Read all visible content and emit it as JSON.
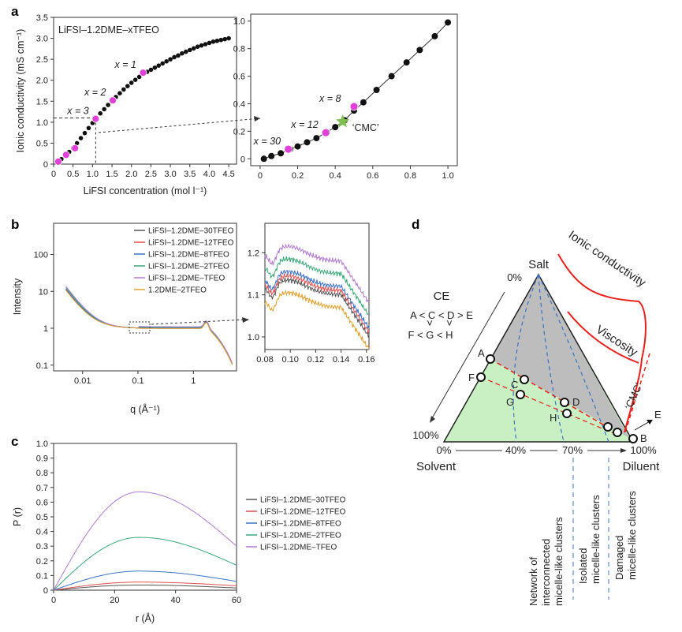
{
  "panel_labels": {
    "a": "a",
    "b": "b",
    "c": "c",
    "d": "d"
  },
  "chart_data": [
    {
      "id": "a_left",
      "type": "scatter",
      "inset_title": "LiFSI–1.2DME–xTFEO",
      "xlabel": "LiFSI concentration (mol l⁻¹)",
      "ylabel": "Ionic conductivity (mS cm⁻¹)",
      "xlim": [
        0,
        4.7
      ],
      "ylim": [
        0,
        3.5
      ],
      "xticks": [
        "0",
        "0.5",
        "1.0",
        "1.5",
        "2.0",
        "2.5",
        "3.0",
        "3.5",
        "4.0",
        "4.5"
      ],
      "yticks": [
        "0",
        "0.5",
        "1.0",
        "1.5",
        "2.0",
        "2.5",
        "3.0",
        "3.5"
      ],
      "series": [
        {
          "x": [
            0.1,
            0.2,
            0.3,
            0.4,
            0.5,
            0.6,
            0.7,
            0.8,
            0.9,
            1.0,
            1.1,
            1.2,
            1.3,
            1.4,
            1.5,
            1.6,
            1.7,
            1.8,
            1.9,
            2.0,
            2.1,
            2.2,
            2.3,
            2.4,
            2.5,
            2.6,
            2.7,
            2.8,
            2.9,
            3.0,
            3.1,
            3.2,
            3.3,
            3.4,
            3.5,
            3.6,
            3.7,
            3.8,
            3.9,
            4.0,
            4.1,
            4.2,
            4.3,
            4.4,
            4.5
          ],
          "y": [
            0.05,
            0.12,
            0.2,
            0.29,
            0.38,
            0.5,
            0.62,
            0.74,
            0.86,
            0.98,
            1.1,
            1.21,
            1.31,
            1.41,
            1.5,
            1.6,
            1.69,
            1.78,
            1.86,
            1.94,
            2.01,
            2.08,
            2.15,
            2.2,
            2.25,
            2.3,
            2.35,
            2.4,
            2.45,
            2.5,
            2.55,
            2.59,
            2.64,
            2.68,
            2.72,
            2.76,
            2.8,
            2.83,
            2.86,
            2.89,
            2.92,
            2.94,
            2.96,
            2.98,
            3.0
          ]
        }
      ],
      "highlights": [
        {
          "x": 0.12,
          "y": 0.06
        },
        {
          "x": 0.32,
          "y": 0.22
        },
        {
          "x": 0.55,
          "y": 0.38
        },
        {
          "x": 1.08,
          "y": 1.08
        },
        {
          "x": 1.52,
          "y": 1.52
        },
        {
          "x": 2.3,
          "y": 2.18
        }
      ],
      "labels": [
        {
          "text": "x = 1",
          "x": 2.3,
          "y": 2.18
        },
        {
          "text": "x = 2",
          "x": 1.52,
          "y": 1.52
        },
        {
          "text": "x = 3",
          "x": 1.08,
          "y": 1.08
        }
      ],
      "dashed_ref": {
        "x": 1.08,
        "y": 1.1
      }
    },
    {
      "id": "a_right",
      "type": "scatter",
      "xlim": [
        -0.05,
        1.05
      ],
      "ylim": [
        -0.05,
        1.05
      ],
      "xticks": [
        "0",
        "0.2",
        "0.4",
        "0.6",
        "0.8",
        "1.0"
      ],
      "yticks": [
        "0",
        "0.2",
        "0.4",
        "0.6",
        "0.8",
        "1.0"
      ],
      "series": [
        {
          "x": [
            0.02,
            0.06,
            0.11,
            0.16,
            0.2,
            0.25,
            0.3,
            0.35,
            0.4,
            0.45,
            0.5,
            0.55,
            0.62,
            0.7,
            0.78,
            0.85,
            0.93,
            1.0
          ],
          "y": [
            0.0,
            0.02,
            0.04,
            0.07,
            0.09,
            0.12,
            0.15,
            0.19,
            0.23,
            0.28,
            0.35,
            0.41,
            0.5,
            0.6,
            0.7,
            0.79,
            0.89,
            0.99
          ]
        }
      ],
      "highlights": [
        {
          "x": 0.15,
          "y": 0.07
        },
        {
          "x": 0.35,
          "y": 0.19
        },
        {
          "x": 0.5,
          "y": 0.38
        }
      ],
      "labels": [
        {
          "text": "x = 30",
          "x": 0.15,
          "y": 0.07
        },
        {
          "text": "x = 12",
          "x": 0.35,
          "y": 0.19
        },
        {
          "text": "x = 8",
          "x": 0.5,
          "y": 0.38
        }
      ],
      "cmc": {
        "text": "‘CMC’",
        "x": 0.44,
        "y": 0.27,
        "color": "#7fbf4f"
      }
    },
    {
      "id": "b_left",
      "type": "line",
      "xlabel": "q (Å⁻¹)",
      "ylabel": "Intensity",
      "xscale": "log",
      "yscale": "log",
      "xlim": [
        0.003,
        6
      ],
      "ylim": [
        0.07,
        700
      ],
      "xticks": [
        "0.01",
        "0.1",
        "1"
      ],
      "yticks": [
        "0.1",
        "1",
        "10",
        "100"
      ],
      "series": [
        {
          "name": "LiFSI–1.2DME–30TFEO",
          "color": "#555555"
        },
        {
          "name": "LiFSI–1.2DME–12TFEO",
          "color": "#e05050"
        },
        {
          "name": "LiFSI–1.2DME–8TFEO",
          "color": "#3b73c4"
        },
        {
          "name": "LiFSI–1.2DME–2TFEO",
          "color": "#3aa878"
        },
        {
          "name": "LiFSI–1.2DME–TFEO",
          "color": "#b07ad0"
        },
        {
          "name": "1.2DME–2TFEO",
          "color": "#e0a030"
        }
      ],
      "curve_scale": {
        "LiFSI–1.2DME–30TFEO": 1.0,
        "LiFSI–1.2DME–12TFEO": 1.02,
        "LiFSI–1.2DME–8TFEO": 1.05,
        "LiFSI–1.2DME–2TFEO": 1.15,
        "LiFSI–1.2DME–TFEO": 1.25,
        "1.2DME–2TFEO": 0.95
      }
    },
    {
      "id": "b_right",
      "type": "line",
      "xlim": [
        0.08,
        0.162
      ],
      "ylim": [
        0.97,
        1.27
      ],
      "xticks": [
        "0.08",
        "0.10",
        "0.12",
        "0.14",
        "0.16"
      ],
      "yticks": [
        "1.0",
        "1.1",
        "1.2"
      ],
      "series": [
        {
          "name": "LiFSI–1.2DME–30TFEO",
          "color": "#555555",
          "offset": 1.12
        },
        {
          "name": "LiFSI–1.2DME–12TFEO",
          "color": "#e05050",
          "offset": 1.13
        },
        {
          "name": "LiFSI–1.2DME–8TFEO",
          "color": "#3b73c4",
          "offset": 1.14
        },
        {
          "name": "LiFSI–1.2DME–2TFEO",
          "color": "#3aa878",
          "offset": 1.17
        },
        {
          "name": "LiFSI–1.2DME–TFEO",
          "color": "#b07ad0",
          "offset": 1.2
        },
        {
          "name": "1.2DME–2TFEO",
          "color": "#e0a030",
          "offset": 1.09
        }
      ]
    },
    {
      "id": "c",
      "type": "line",
      "xlabel": "r (Å)",
      "ylabel": "P (r)",
      "xlim": [
        0,
        60
      ],
      "ylim": [
        0,
        1.0
      ],
      "xticks": [
        "0",
        "20",
        "40",
        "60"
      ],
      "yticks": [
        "0",
        "0.1",
        "0.2",
        "0.3",
        "0.4",
        "0.5",
        "0.6",
        "0.7",
        "0.8",
        "0.9",
        "1.0"
      ],
      "series": [
        {
          "name": "LiFSI–1.2DME–30TFEO",
          "color": "#555555",
          "peak": 0.035,
          "end": 0.015
        },
        {
          "name": "LiFSI–1.2DME–12TFEO",
          "color": "#e05050",
          "peak": 0.055,
          "end": 0.03
        },
        {
          "name": "LiFSI–1.2DME–8TFEO",
          "color": "#3b73c4",
          "peak": 0.13,
          "end": 0.06
        },
        {
          "name": "LiFSI–1.2DME–2TFEO",
          "color": "#3aa878",
          "peak": 0.36,
          "end": 0.17
        },
        {
          "name": "LiFSI–1.2DME–TFEO",
          "color": "#b07ad0",
          "peak": 0.67,
          "end": 0.3
        }
      ]
    }
  ],
  "diagram_d": {
    "vertex_salt": "Salt",
    "vertex_solvent": "Solvent",
    "vertex_diluent": "Diluent",
    "pct_top": "0%",
    "pct_left": "100%",
    "pct_bottom_left": "0%",
    "pct_bottom_right": "100%",
    "pct_40": "40%",
    "pct_70": "70%",
    "ce_title": "CE",
    "ce_line1": "A < C < D > E",
    "ce_line2a": "˅",
    "ce_line2b": "˅",
    "ce_line3": "F < G < H",
    "points": [
      "A",
      "B",
      "C",
      "D",
      "E",
      "F",
      "G",
      "H"
    ],
    "ionic_label": "Ionic conductivity",
    "viscosity_label": "Viscosity",
    "cmc_label": "‘CMC’",
    "region1": "Network of interconnected micelle-like clusters",
    "region1_lines": [
      "Network of",
      "interconnected",
      "micelle-like clusters"
    ],
    "region2_lines": [
      "Isolated",
      "micelle-like clusters"
    ],
    "region3_lines": [
      "Damaged",
      "micelle-like clusters"
    ],
    "colors": {
      "gray": "#bdbdbd",
      "green": "#c8f0c3",
      "red": "#e8201c",
      "blue": "#3b73c4"
    }
  }
}
